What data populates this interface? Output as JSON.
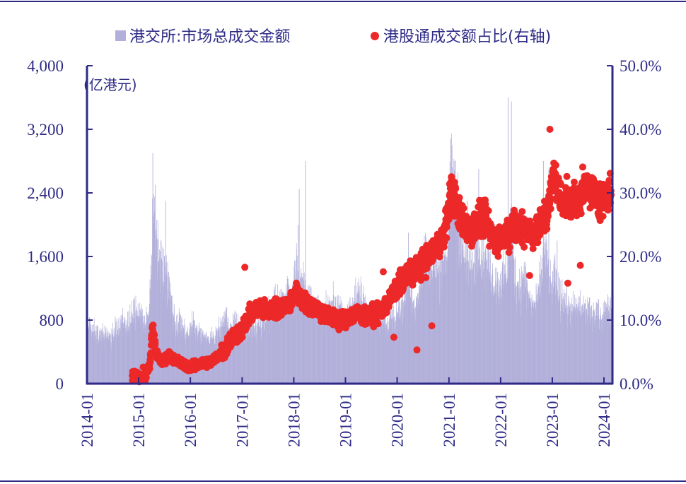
{
  "chart_data": {
    "type": "bar+scatter",
    "legend": {
      "placement": "top-center",
      "items": [
        {
          "label": "港交所:市场总成交金额",
          "marker": "square",
          "color": "#b2b0da"
        },
        {
          "label": "港股通成交额占比(右轴)",
          "marker": "circle",
          "color": "#ec2828"
        }
      ]
    },
    "y_left": {
      "unit_label": "(亿港元)",
      "ylim": [
        0,
        4000
      ],
      "ticks": [
        "0",
        "800",
        "1,600",
        "2,400",
        "3,200",
        "4,000"
      ],
      "tick_values": [
        0,
        800,
        1600,
        2400,
        3200,
        4000
      ]
    },
    "y_right": {
      "ylim": [
        0,
        50
      ],
      "ticks": [
        "0.0%",
        "10.0%",
        "20.0%",
        "30.0%",
        "40.0%",
        "50.0%"
      ],
      "tick_values": [
        0,
        10,
        20,
        30,
        40,
        50
      ]
    },
    "x": {
      "ticks": [
        "2014-01",
        "2015-01",
        "2016-01",
        "2017-01",
        "2018-01",
        "2019-01",
        "2020-01",
        "2021-01",
        "2022-01",
        "2023-01",
        "2024-01"
      ],
      "range": [
        "2014-01-01",
        "2024-03-01"
      ]
    },
    "series": [
      {
        "name": "港交所:市场总成交金额",
        "kind": "bar",
        "axis": "left",
        "color": "#b2b0da",
        "monthly_approx": [
          [
            "2014-01",
            720
          ],
          [
            "2014-02",
            650
          ],
          [
            "2014-03",
            660
          ],
          [
            "2014-04",
            600
          ],
          [
            "2014-05",
            580
          ],
          [
            "2014-06",
            560
          ],
          [
            "2014-07",
            680
          ],
          [
            "2014-08",
            640
          ],
          [
            "2014-09",
            780
          ],
          [
            "2014-10",
            720
          ],
          [
            "2014-11",
            820
          ],
          [
            "2014-12",
            920
          ],
          [
            "2015-01",
            880
          ],
          [
            "2015-02",
            700
          ],
          [
            "2015-03",
            900
          ],
          [
            "2015-04",
            2100
          ],
          [
            "2015-05",
            1600
          ],
          [
            "2015-06",
            1400
          ],
          [
            "2015-07",
            1350
          ],
          [
            "2015-08",
            1050
          ],
          [
            "2015-09",
            720
          ],
          [
            "2015-10",
            740
          ],
          [
            "2015-11",
            640
          ],
          [
            "2015-12",
            600
          ],
          [
            "2016-01",
            760
          ],
          [
            "2016-02",
            620
          ],
          [
            "2016-03",
            620
          ],
          [
            "2016-04",
            560
          ],
          [
            "2016-05",
            520
          ],
          [
            "2016-06",
            560
          ],
          [
            "2016-07",
            620
          ],
          [
            "2016-08",
            740
          ],
          [
            "2016-09",
            820
          ],
          [
            "2016-10",
            660
          ],
          [
            "2016-11",
            760
          ],
          [
            "2016-12",
            620
          ],
          [
            "2017-01",
            560
          ],
          [
            "2017-02",
            680
          ],
          [
            "2017-03",
            720
          ],
          [
            "2017-04",
            680
          ],
          [
            "2017-05",
            760
          ],
          [
            "2017-06",
            840
          ],
          [
            "2017-07",
            840
          ],
          [
            "2017-08",
            1000
          ],
          [
            "2017-09",
            940
          ],
          [
            "2017-10",
            1020
          ],
          [
            "2017-11",
            1180
          ],
          [
            "2017-12",
            1000
          ],
          [
            "2018-01",
            1500
          ],
          [
            "2018-02",
            1300
          ],
          [
            "2018-03",
            1150
          ],
          [
            "2018-04",
            1020
          ],
          [
            "2018-05",
            1000
          ],
          [
            "2018-06",
            950
          ],
          [
            "2018-07",
            850
          ],
          [
            "2018-08",
            880
          ],
          [
            "2018-09",
            900
          ],
          [
            "2018-10",
            1020
          ],
          [
            "2018-11",
            920
          ],
          [
            "2018-12",
            780
          ],
          [
            "2019-01",
            840
          ],
          [
            "2019-02",
            980
          ],
          [
            "2019-03",
            1080
          ],
          [
            "2019-04",
            1100
          ],
          [
            "2019-05",
            960
          ],
          [
            "2019-06",
            860
          ],
          [
            "2019-07",
            760
          ],
          [
            "2019-08",
            840
          ],
          [
            "2019-09",
            780
          ],
          [
            "2019-10",
            720
          ],
          [
            "2019-11",
            820
          ],
          [
            "2019-12",
            760
          ],
          [
            "2020-01",
            960
          ],
          [
            "2020-02",
            1000
          ],
          [
            "2020-03",
            1400
          ],
          [
            "2020-04",
            980
          ],
          [
            "2020-05",
            1000
          ],
          [
            "2020-06",
            1260
          ],
          [
            "2020-07",
            1700
          ],
          [
            "2020-08",
            1400
          ],
          [
            "2020-09",
            1500
          ],
          [
            "2020-10",
            1360
          ],
          [
            "2020-11",
            1500
          ],
          [
            "2020-12",
            1580
          ],
          [
            "2021-01",
            2500
          ],
          [
            "2021-02",
            2300
          ],
          [
            "2021-03",
            1900
          ],
          [
            "2021-04",
            1550
          ],
          [
            "2021-05",
            1500
          ],
          [
            "2021-06",
            1350
          ],
          [
            "2021-07",
            1800
          ],
          [
            "2021-08",
            1550
          ],
          [
            "2021-09",
            1500
          ],
          [
            "2021-10",
            1400
          ],
          [
            "2021-11",
            1250
          ],
          [
            "2021-12",
            1200
          ],
          [
            "2022-01",
            1300
          ],
          [
            "2022-02",
            1400
          ],
          [
            "2022-03",
            2000
          ],
          [
            "2022-04",
            1250
          ],
          [
            "2022-05",
            1200
          ],
          [
            "2022-06",
            1350
          ],
          [
            "2022-07",
            1050
          ],
          [
            "2022-08",
            950
          ],
          [
            "2022-09",
            1000
          ],
          [
            "2022-10",
            1350
          ],
          [
            "2022-11",
            1650
          ],
          [
            "2022-12",
            1150
          ],
          [
            "2023-01",
            1300
          ],
          [
            "2023-02",
            1050
          ],
          [
            "2023-03",
            1100
          ],
          [
            "2023-04",
            950
          ],
          [
            "2023-05",
            900
          ],
          [
            "2023-06",
            920
          ],
          [
            "2023-07",
            950
          ],
          [
            "2023-08",
            900
          ],
          [
            "2023-09",
            850
          ],
          [
            "2023-10",
            850
          ],
          [
            "2023-11",
            880
          ],
          [
            "2023-12",
            780
          ],
          [
            "2024-01",
            1000
          ],
          [
            "2024-02",
            920
          ]
        ],
        "spikes": [
          [
            "2015-04-09",
            2900
          ],
          [
            "2015-04-27",
            2500
          ],
          [
            "2015-07-08",
            2300
          ],
          [
            "2018-01-29",
            2000
          ],
          [
            "2018-02-06",
            2450
          ],
          [
            "2018-03-23",
            2800
          ],
          [
            "2020-03-19",
            1900
          ],
          [
            "2021-01-20",
            3000
          ],
          [
            "2021-02-08",
            2800
          ],
          [
            "2021-05-12",
            2300
          ],
          [
            "2021-07-28",
            2700
          ],
          [
            "2022-02-21",
            3600
          ],
          [
            "2022-03-16",
            3550
          ],
          [
            "2022-10-28",
            2800
          ],
          [
            "2022-12-05",
            2700
          ],
          [
            "2023-02-02",
            1800
          ]
        ]
      },
      {
        "name": "港股通成交额占比(右轴)",
        "kind": "scatter",
        "axis": "right",
        "color": "#ec2828",
        "trend_approx": [
          [
            "2014-11-17",
            1.0
          ],
          [
            "2014-12-15",
            1.5
          ],
          [
            "2015-01-15",
            1.0
          ],
          [
            "2015-02-15",
            1.2
          ],
          [
            "2015-03-20",
            3.0
          ],
          [
            "2015-04-10",
            8.5
          ],
          [
            "2015-05-01",
            5.0
          ],
          [
            "2015-06-15",
            3.3
          ],
          [
            "2015-08-01",
            4.5
          ],
          [
            "2015-10-01",
            3.5
          ],
          [
            "2016-01-01",
            2.6
          ],
          [
            "2016-03-01",
            3.0
          ],
          [
            "2016-06-01",
            3.5
          ],
          [
            "2016-09-01",
            5.5
          ],
          [
            "2016-11-01",
            7.5
          ],
          [
            "2017-01-01",
            8.5
          ],
          [
            "2017-03-01",
            11.0
          ],
          [
            "2017-06-01",
            12.0
          ],
          [
            "2017-09-01",
            11.5
          ],
          [
            "2017-12-01",
            12.5
          ],
          [
            "2018-01-15",
            14.5
          ],
          [
            "2018-03-01",
            13.0
          ],
          [
            "2018-06-01",
            12.0
          ],
          [
            "2018-09-01",
            10.5
          ],
          [
            "2018-12-01",
            10.0
          ],
          [
            "2019-03-01",
            11.0
          ],
          [
            "2019-06-01",
            10.5
          ],
          [
            "2019-09-01",
            11.0
          ],
          [
            "2019-12-01",
            14.0
          ],
          [
            "2020-02-01",
            16.0
          ],
          [
            "2020-04-01",
            17.5
          ],
          [
            "2020-06-01",
            18.0
          ],
          [
            "2020-09-01",
            20.5
          ],
          [
            "2020-12-01",
            23.5
          ],
          [
            "2021-01-20",
            31.0
          ],
          [
            "2021-03-01",
            27.0
          ],
          [
            "2021-06-01",
            24.0
          ],
          [
            "2021-09-01",
            26.0
          ],
          [
            "2021-12-01",
            22.0
          ],
          [
            "2022-03-01",
            24.0
          ],
          [
            "2022-06-01",
            25.0
          ],
          [
            "2022-09-01",
            23.5
          ],
          [
            "2022-12-01",
            27.0
          ],
          [
            "2023-01-10",
            33.0
          ],
          [
            "2023-03-01",
            29.0
          ],
          [
            "2023-06-01",
            28.5
          ],
          [
            "2023-09-01",
            31.0
          ],
          [
            "2023-12-01",
            29.0
          ],
          [
            "2024-02-20",
            30.0
          ]
        ],
        "max_approx": [
          "2022-12-15",
          40.0
        ],
        "outliers": [
          [
            "2015-01-05",
            0.3
          ],
          [
            "2015-02-02",
            2.6
          ],
          [
            "2017-01-20",
            18.3
          ],
          [
            "2019-09-25",
            17.6
          ],
          [
            "2019-12-09",
            7.3
          ],
          [
            "2020-05-20",
            5.3
          ],
          [
            "2020-09-02",
            9.1
          ],
          [
            "2022-07-25",
            17.0
          ],
          [
            "2022-09-23",
            26.0
          ],
          [
            "2023-04-21",
            15.8
          ],
          [
            "2023-07-18",
            18.6
          ]
        ]
      }
    ]
  }
}
